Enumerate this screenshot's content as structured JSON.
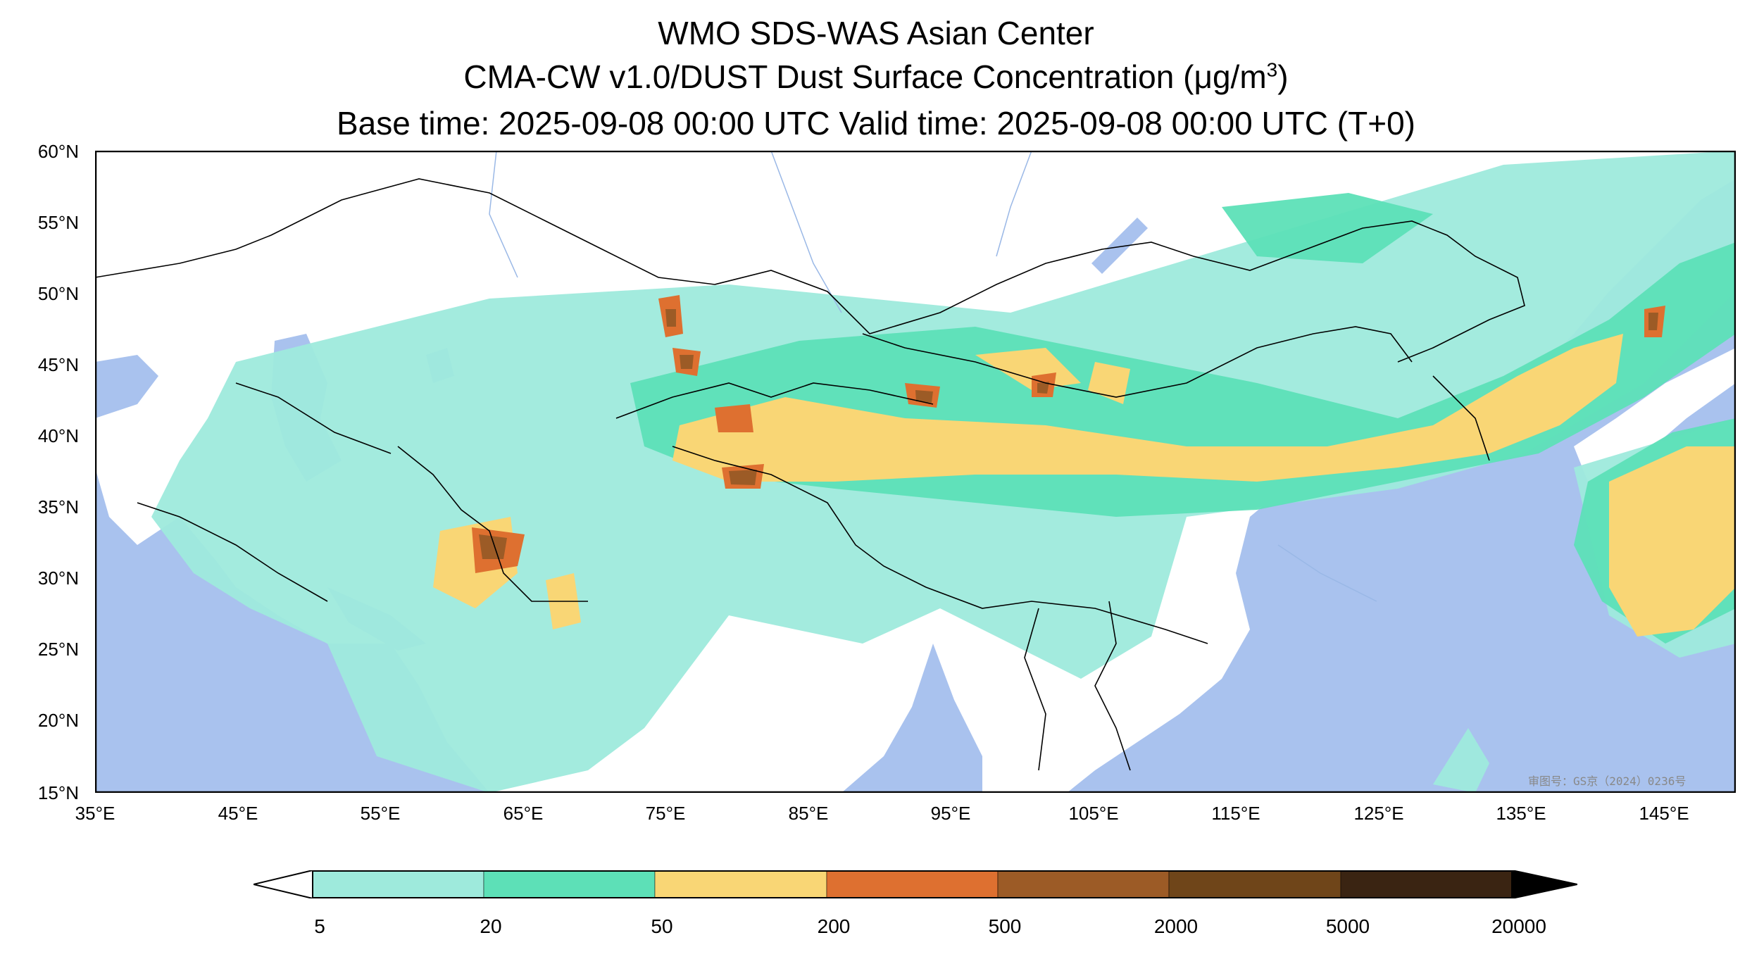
{
  "header": {
    "line1": "WMO SDS-WAS Asian Center",
    "line2_prefix": "CMA-CW v1.0/DUST Dust Surface Concentration (",
    "line2_mu": "μ",
    "line2_unit": "g/m",
    "line2_exp": "3",
    "line2_suffix": ")",
    "line3": "Base time: 2025-09-08 00:00 UTC Valid time: 2025-09-08 00:00 UTC (T+0)"
  },
  "map": {
    "lat_labels": [
      "60°N",
      "55°N",
      "50°N",
      "45°N",
      "40°N",
      "35°N",
      "30°N",
      "25°N",
      "20°N",
      "15°N"
    ],
    "lon_labels": [
      "35°E",
      "45°E",
      "55°E",
      "65°E",
      "75°E",
      "85°E",
      "95°E",
      "105°E",
      "115°E",
      "125°E",
      "135°E",
      "145°E"
    ],
    "watermark": "审图号：GS京（2024）0236号",
    "colors": {
      "ocean": "#a9c2ee",
      "land": "#ffffff",
      "border": "#000000",
      "river": "#9ab8e6"
    }
  },
  "legend": {
    "ticks": [
      "5",
      "20",
      "50",
      "200",
      "500",
      "2000",
      "5000",
      "20000"
    ],
    "colors": [
      "#9eeadc",
      "#5de0b7",
      "#f9d675",
      "#de7030",
      "#9c5b26",
      "#6f4519",
      "#3a2412"
    ],
    "under_color": "#ffffff",
    "over_color": "#000000"
  }
}
